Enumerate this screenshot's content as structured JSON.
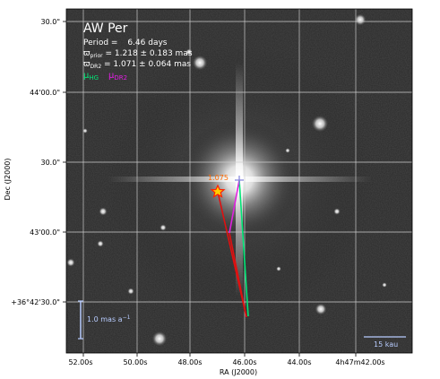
{
  "star": {
    "name": "AW Per"
  },
  "info": {
    "period_label": "Period =",
    "period_value": "6.46 days",
    "prior_sym": "ϖ",
    "prior_sub": "prior",
    "prior_rest": " = 1.218 ± 0.183 mas",
    "dr2_sym": "ϖ",
    "dr2_sub": "DR2",
    "dr2_rest": " = 1.071 ± 0.064 mas"
  },
  "legend": {
    "hg_sym": "μ",
    "hg_sub": "HG",
    "dr2_sym": "μ",
    "dr2_sub": "DR2"
  },
  "colors": {
    "hg": "#00e676",
    "dr2": "#e020e0",
    "red_track": "#e01010",
    "marker_fill": "#ffd000",
    "marker_edge": "#ff2000",
    "label_orange": "#ff6a00",
    "scale": "#b8ccff",
    "grid": "#cfcfcf"
  },
  "axes": {
    "ylabel": "Dec (J2000)",
    "xlabel": "RA (J2000)",
    "yticks": [
      "30.0\"",
      "44'00.0\"",
      "30.0\"",
      "43'00.0\"",
      "+36°42'30.0\""
    ],
    "xticks": [
      "52.00s",
      "50.00s",
      "48.00s",
      "46.00s",
      "44.00s",
      "4h47m42.00s"
    ]
  },
  "annotations": {
    "marker_label": "1.075",
    "pm_scale": "1.0 mas a",
    "pm_scale_exp": "−1",
    "dist_scale": "15 kau"
  }
}
